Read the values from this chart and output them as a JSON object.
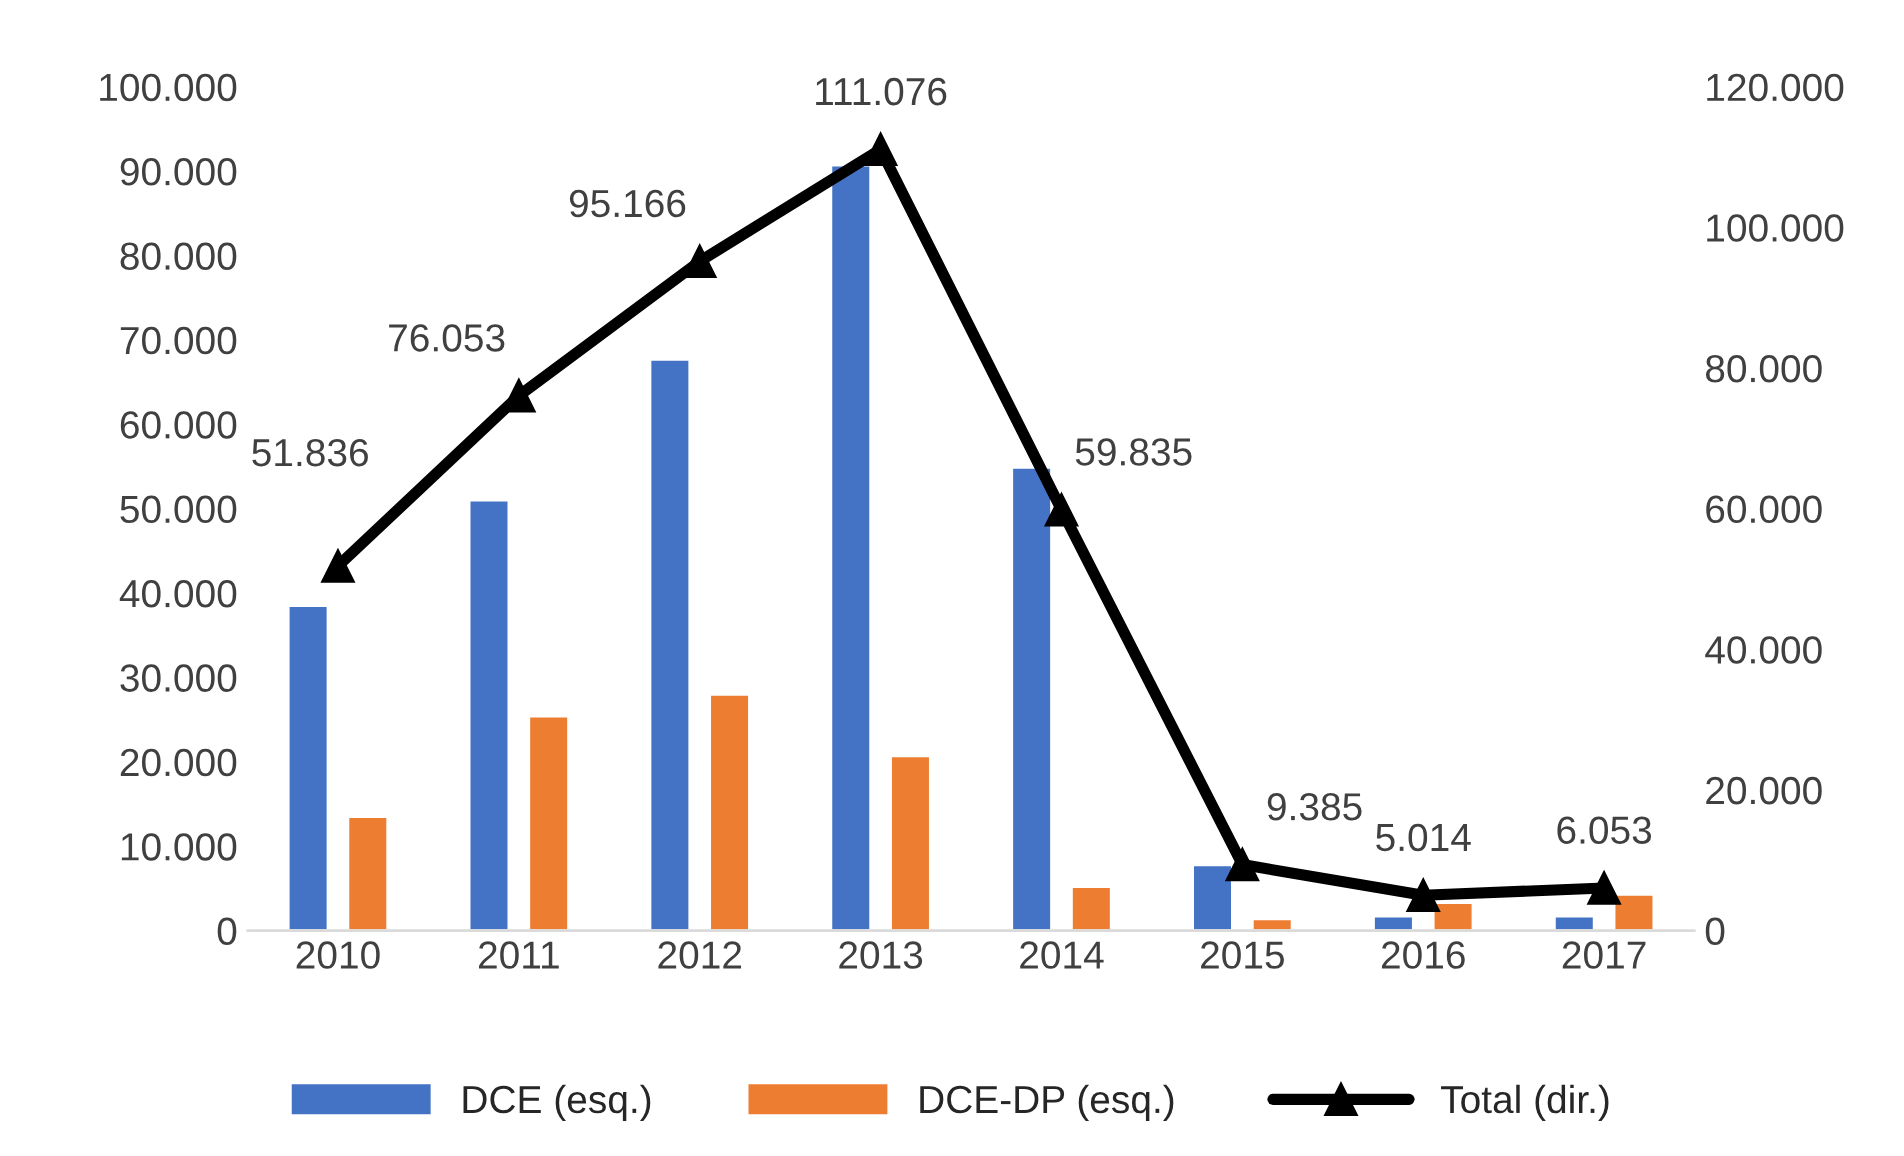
{
  "chart_data": {
    "type": "bar",
    "categories": [
      "2010",
      "2011",
      "2012",
      "2013",
      "2014",
      "2015",
      "2016",
      "2017"
    ],
    "series": [
      {
        "name": "DCE (esq.)",
        "color": "#4472c4",
        "values": [
          38500,
          51000,
          67700,
          90700,
          54900,
          7800,
          1700,
          1700
        ]
      },
      {
        "name": "DCE-DP (esq.)",
        "color": "#ed7d31",
        "values": [
          13500,
          25400,
          28000,
          20700,
          5200,
          1400,
          3300,
          4300
        ]
      },
      {
        "name": "Total (dir.)",
        "type": "line",
        "axis": "y2",
        "color": "#000000",
        "marker": "triangle",
        "values": [
          51836,
          76053,
          95166,
          111076,
          59835,
          9385,
          5014,
          6053
        ],
        "value_labels": [
          "51.836",
          "76.053",
          "95.166",
          "111.076",
          "59.835",
          "9.385",
          "5.014",
          "6.053"
        ]
      }
    ],
    "ylim": [
      0,
      100000
    ],
    "yticks": [
      {
        "value": 0,
        "label": "0"
      },
      {
        "value": 10000,
        "label": "10.000"
      },
      {
        "value": 20000,
        "label": "20.000"
      },
      {
        "value": 30000,
        "label": "30.000"
      },
      {
        "value": 40000,
        "label": "40.000"
      },
      {
        "value": 50000,
        "label": "50.000"
      },
      {
        "value": 60000,
        "label": "60.000"
      },
      {
        "value": 70000,
        "label": "70.000"
      },
      {
        "value": 80000,
        "label": "80.000"
      },
      {
        "value": 90000,
        "label": "90.000"
      },
      {
        "value": 100000,
        "label": "100.000"
      }
    ],
    "y2lim": [
      0,
      120000
    ],
    "y2ticks": [
      {
        "value": 0,
        "label": "0"
      },
      {
        "value": 20000,
        "label": "20.000"
      },
      {
        "value": 40000,
        "label": "40.000"
      },
      {
        "value": 60000,
        "label": "60.000"
      },
      {
        "value": 80000,
        "label": "80.000"
      },
      {
        "value": 100000,
        "label": "100.000"
      },
      {
        "value": 120000,
        "label": "120.000"
      }
    ],
    "grid": false,
    "legend": "bottom"
  }
}
